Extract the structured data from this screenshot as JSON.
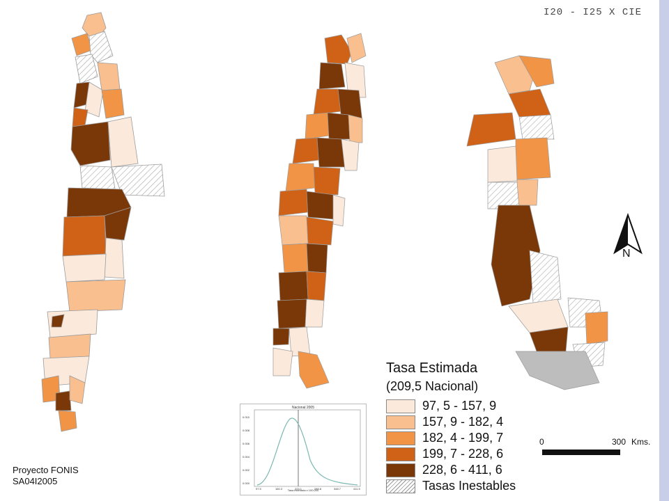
{
  "header": {
    "code": "I20 - I25 X CIE"
  },
  "legend": {
    "title": "Tasa Estimada",
    "subtitle": "(209,5 Nacional)",
    "classes": [
      {
        "label": "97, 5 - 157, 9",
        "color": "#fbe9dc"
      },
      {
        "label": "157, 9 - 182, 4",
        "color": "#f9bf8f"
      },
      {
        "label": "182, 4 - 199, 7",
        "color": "#f19445"
      },
      {
        "label": "199, 7 - 228, 6",
        "color": "#d06218"
      },
      {
        "label": "228, 6 - 411, 6",
        "color": "#7a3707"
      },
      {
        "label": "Tasas Inestables",
        "color": "hatch"
      }
    ]
  },
  "north_arrow": {
    "label": "N"
  },
  "scale_bar": {
    "start_label": "0",
    "end_label": "300",
    "unit": "Kms."
  },
  "credit": {
    "line1": "Proyecto FONIS",
    "line2": "SA04I2005"
  },
  "inset_chart": {
    "title": "Nacional 2005",
    "x_label": "Tasa estimada x 100.000",
    "x_ticks": [
      "97.5",
      "160.3",
      "223.1",
      "285.8",
      "348.7",
      "411.5"
    ],
    "y_ticks": [
      "0.010",
      "0.008",
      "0.006",
      "0.004",
      "0.002",
      "0.000"
    ],
    "marker_x": "209.5"
  }
}
